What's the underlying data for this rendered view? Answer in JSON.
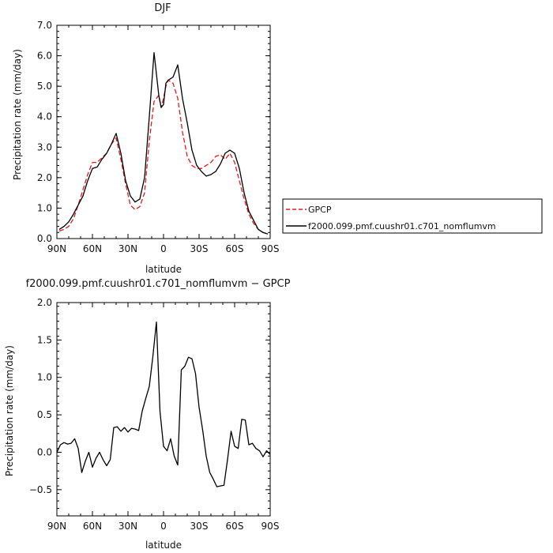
{
  "chart_data": [
    {
      "type": "line",
      "title": "DJF",
      "xlabel": "latitude",
      "ylabel": "Precipitation rate (mm/day)",
      "xlim": [
        90,
        -90
      ],
      "ylim": [
        0,
        7
      ],
      "xticks": [
        90,
        60,
        30,
        0,
        -30,
        -60,
        -90
      ],
      "xtick_labels": [
        "90N",
        "60N",
        "30N",
        "0",
        "30S",
        "60S",
        "90S"
      ],
      "yticks": [
        0,
        1,
        2,
        3,
        4,
        5,
        6,
        7
      ],
      "ytick_labels": [
        "0.0",
        "1.0",
        "2.0",
        "3.0",
        "4.0",
        "5.0",
        "6.0",
        "7.0"
      ],
      "grid": false,
      "legend": "right",
      "series": [
        {
          "name": "GPCP",
          "color": "#e8191a",
          "dash": "dashed",
          "x": [
            88,
            84,
            80,
            76,
            72,
            68,
            64,
            60,
            56,
            52,
            48,
            44,
            40,
            36,
            32,
            28,
            24,
            20,
            16,
            12,
            8,
            4,
            2,
            0,
            -2,
            -4,
            -8,
            -12,
            -16,
            -20,
            -24,
            -28,
            -32,
            -36,
            -40,
            -44,
            -48,
            -52,
            -56,
            -60,
            -64,
            -68,
            -72,
            -76,
            -80,
            -84,
            -88
          ],
          "y": [
            0.25,
            0.3,
            0.4,
            0.65,
            1.1,
            1.6,
            2.1,
            2.5,
            2.5,
            2.65,
            2.8,
            3.1,
            3.3,
            2.6,
            1.8,
            1.1,
            0.95,
            1.05,
            1.5,
            3.2,
            4.5,
            4.7,
            4.3,
            4.6,
            5.0,
            5.2,
            5.1,
            4.6,
            3.5,
            2.7,
            2.4,
            2.3,
            2.3,
            2.4,
            2.5,
            2.7,
            2.75,
            2.6,
            2.8,
            2.5,
            1.9,
            1.3,
            0.8,
            0.5,
            0.3,
            0.2,
            0.15
          ]
        },
        {
          "name": "f2000.099.pmf.cuushr01.c701_nomflumvm",
          "color": "#000000",
          "dash": "solid",
          "x": [
            88,
            84,
            80,
            76,
            72,
            68,
            64,
            60,
            56,
            52,
            48,
            44,
            40,
            36,
            32,
            28,
            24,
            20,
            16,
            12,
            8,
            4,
            2,
            0,
            -2,
            -4,
            -8,
            -12,
            -16,
            -20,
            -24,
            -28,
            -32,
            -36,
            -40,
            -44,
            -48,
            -52,
            -56,
            -60,
            -64,
            -68,
            -72,
            -76,
            -80,
            -84,
            -88
          ],
          "y": [
            0.3,
            0.4,
            0.55,
            0.8,
            1.1,
            1.4,
            1.9,
            2.3,
            2.35,
            2.6,
            2.8,
            3.1,
            3.45,
            2.8,
            1.9,
            1.4,
            1.2,
            1.3,
            2.0,
            4.0,
            6.1,
            4.7,
            4.3,
            4.4,
            5.1,
            5.2,
            5.3,
            5.7,
            4.6,
            3.8,
            2.9,
            2.4,
            2.2,
            2.05,
            2.1,
            2.2,
            2.45,
            2.8,
            2.9,
            2.8,
            2.3,
            1.5,
            0.9,
            0.6,
            0.3,
            0.2,
            0.15
          ]
        }
      ]
    },
    {
      "type": "line",
      "title": "f2000.099.pmf.cuushr01.c701_nomflumvm − GPCP",
      "xlabel": "latitude",
      "ylabel": "Precipitation rate (mm/day)",
      "xlim": [
        90,
        -90
      ],
      "ylim": [
        -0.85,
        2.0
      ],
      "xticks": [
        90,
        60,
        30,
        0,
        -30,
        -60,
        -90
      ],
      "xtick_labels": [
        "90N",
        "60N",
        "30N",
        "0",
        "30S",
        "60S",
        "90S"
      ],
      "yticks": [
        -0.5,
        0,
        0.5,
        1.0,
        1.5,
        2.0
      ],
      "ytick_labels": [
        "−0.5",
        "0.0",
        "0.5",
        "1.0",
        "1.5",
        "2.0"
      ],
      "grid": false,
      "series": [
        {
          "color": "#000000",
          "dash": "solid",
          "x": [
            90,
            87,
            84,
            81,
            78,
            75,
            72,
            69,
            66,
            63,
            60,
            57,
            54,
            51,
            48,
            45,
            42,
            39,
            36,
            33,
            30,
            27,
            24,
            21,
            18,
            15,
            12,
            9,
            6,
            3,
            0,
            -3,
            -6,
            -9,
            -12,
            -15,
            -18,
            -21,
            -24,
            -27,
            -30,
            -33,
            -36,
            -39,
            -42,
            -45,
            -48,
            -51,
            -54,
            -57,
            -60,
            -63,
            -66,
            -69,
            -72,
            -75,
            -78,
            -81,
            -84,
            -87,
            -90
          ],
          "y": [
            0.0,
            0.1,
            0.13,
            0.11,
            0.12,
            0.18,
            0.05,
            -0.27,
            -0.12,
            0.0,
            -0.2,
            -0.08,
            0.0,
            -0.1,
            -0.18,
            -0.1,
            0.33,
            0.34,
            0.28,
            0.33,
            0.27,
            0.32,
            0.31,
            0.29,
            0.55,
            0.72,
            0.88,
            1.28,
            1.74,
            0.55,
            0.08,
            0.02,
            0.18,
            -0.05,
            -0.17,
            1.1,
            1.15,
            1.27,
            1.25,
            1.05,
            0.6,
            0.3,
            -0.05,
            -0.27,
            -0.36,
            -0.46,
            -0.45,
            -0.44,
            -0.1,
            0.28,
            0.08,
            0.05,
            0.44,
            0.43,
            0.1,
            0.12,
            0.05,
            0.02,
            -0.06,
            0.02,
            -0.03
          ]
        }
      ]
    }
  ]
}
